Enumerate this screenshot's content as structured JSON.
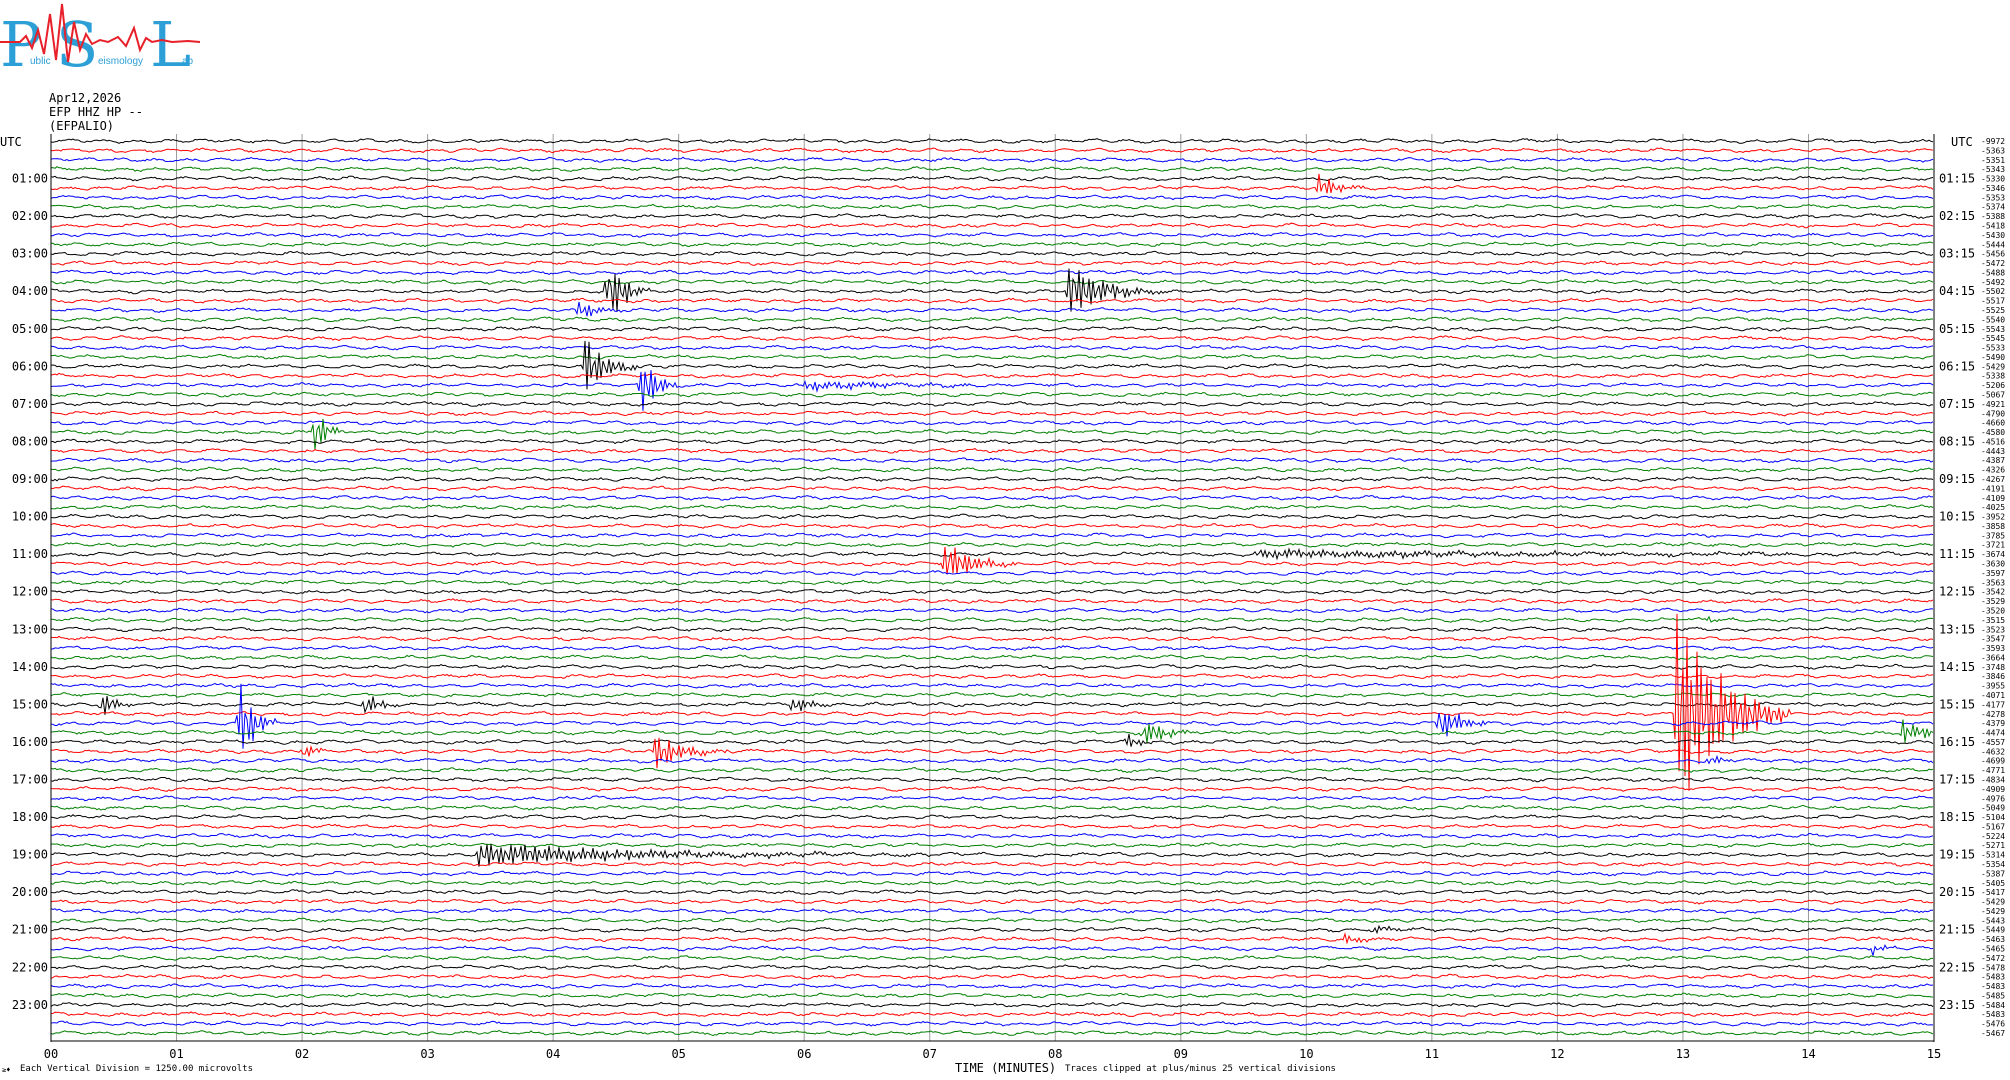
{
  "logo": {
    "letters": [
      "P",
      "S",
      "L"
    ],
    "small_words": [
      "ublic",
      "eismology",
      "ab"
    ],
    "colors": {
      "letters": "#2b9fd6",
      "wave": "#e8202a"
    }
  },
  "header": {
    "date": "Apr12,2026",
    "station": "EFP HHZ HP --",
    "code": "(EFPALIO)"
  },
  "chart_data": {
    "type": "line",
    "title": "",
    "xlabel": "TIME (MINUTES)",
    "x_ticks": [
      "00",
      "01",
      "02",
      "03",
      "04",
      "05",
      "06",
      "07",
      "08",
      "09",
      "10",
      "11",
      "12",
      "13",
      "14",
      "15"
    ],
    "xlim": [
      0,
      15
    ],
    "grid": true,
    "trace_colors": [
      "#000000",
      "#ff0000",
      "#0000ff",
      "#007f00"
    ],
    "utc_label": "UTC",
    "left_hour_labels": [
      "01:00",
      "02:00",
      "03:00",
      "04:00",
      "05:00",
      "06:00",
      "07:00",
      "08:00",
      "09:00",
      "10:00",
      "11:00",
      "12:00",
      "13:00",
      "14:00",
      "15:00",
      "16:00",
      "17:00",
      "18:00",
      "19:00",
      "20:00",
      "21:00",
      "22:00",
      "23:00"
    ],
    "right_hour_labels": [
      "01:15",
      "02:15",
      "03:15",
      "04:15",
      "05:15",
      "06:15",
      "07:15",
      "08:15",
      "09:15",
      "10:15",
      "11:15",
      "12:15",
      "13:15",
      "14:15",
      "15:15",
      "16:15",
      "17:15",
      "18:15",
      "19:15",
      "20:15",
      "21:15",
      "22:15",
      "23:15"
    ],
    "trace_count": 96,
    "offsets": [
      "-9972",
      "-5363",
      "-5351",
      "-5343",
      "-5330",
      "-5346",
      "-5353",
      "-5374",
      "-5388",
      "-5418",
      "-5430",
      "-5444",
      "-5456",
      "-5472",
      "-5488",
      "-5492",
      "-5502",
      "-5517",
      "-5525",
      "-5540",
      "-5543",
      "-5545",
      "-5533",
      "-5490",
      "-5429",
      "-5338",
      "-5206",
      "-5067",
      "-4921",
      "-4790",
      "-4660",
      "-4580",
      "-4516",
      "-4443",
      "-4387",
      "-4326",
      "-4267",
      "-4191",
      "-4109",
      "-4025",
      "-3952",
      "-3858",
      "-3785",
      "-3721",
      "-3674",
      "-3630",
      "-3597",
      "-3563",
      "-3542",
      "-3529",
      "-3520",
      "-3515",
      "-3523",
      "-3547",
      "-3593",
      "-3664",
      "-3748",
      "-3846",
      "-3955",
      "-4071",
      "-4177",
      "-4278",
      "-4379",
      "-4474",
      "-4557",
      "-4632",
      "-4699",
      "-4771",
      "-4834",
      "-4909",
      "-4976",
      "-5049",
      "-5104",
      "-5167",
      "-5224",
      "-5271",
      "-5314",
      "-5354",
      "-5387",
      "-5405",
      "-5417",
      "-5429",
      "-5429",
      "-5443",
      "-5449",
      "-5463",
      "-5465",
      "-5472",
      "-5478",
      "-5483",
      "-5483",
      "-5485",
      "-5484",
      "-5483",
      "-5476",
      "-5467"
    ],
    "events": [
      {
        "trace": 16,
        "x_min": 4.43,
        "amp": 45,
        "dur": 0.12
      },
      {
        "trace": 16,
        "x_min": 8.1,
        "amp": 38,
        "dur": 0.25
      },
      {
        "trace": 18,
        "x_min": 4.2,
        "amp": 14,
        "dur": 0.12
      },
      {
        "trace": 24,
        "x_min": 4.25,
        "amp": 40,
        "dur": 0.15
      },
      {
        "trace": 26,
        "x_min": 4.7,
        "amp": 45,
        "dur": 0.1
      },
      {
        "trace": 26,
        "x_min": 6.0,
        "amp": 6,
        "dur": 0.7
      },
      {
        "trace": 31,
        "x_min": 2.1,
        "amp": 30,
        "dur": 0.08
      },
      {
        "trace": 5,
        "x_min": 10.1,
        "amp": 14,
        "dur": 0.15
      },
      {
        "trace": 45,
        "x_min": 7.12,
        "amp": 28,
        "dur": 0.2
      },
      {
        "trace": 44,
        "x_min": 9.6,
        "amp": 5,
        "dur": 2.3
      },
      {
        "trace": 60,
        "x_min": 0.4,
        "amp": 16,
        "dur": 0.1
      },
      {
        "trace": 61,
        "x_min": 12.95,
        "amp": 140,
        "dur": 0.3
      },
      {
        "trace": 62,
        "x_min": 1.5,
        "amp": 60,
        "dur": 0.1
      },
      {
        "trace": 60,
        "x_min": 2.5,
        "amp": 15,
        "dur": 0.1
      },
      {
        "trace": 60,
        "x_min": 5.9,
        "amp": 15,
        "dur": 0.1
      },
      {
        "trace": 65,
        "x_min": 2.0,
        "amp": 10,
        "dur": 0.1
      },
      {
        "trace": 65,
        "x_min": 4.8,
        "amp": 22,
        "dur": 0.2
      },
      {
        "trace": 63,
        "x_min": 8.7,
        "amp": 18,
        "dur": 0.15
      },
      {
        "trace": 64,
        "x_min": 8.55,
        "amp": 10,
        "dur": 0.1
      },
      {
        "trace": 62,
        "x_min": 11.05,
        "amp": 24,
        "dur": 0.15
      },
      {
        "trace": 63,
        "x_min": 14.75,
        "amp": 14,
        "dur": 0.2
      },
      {
        "trace": 66,
        "x_min": 13.2,
        "amp": 8,
        "dur": 0.1
      },
      {
        "trace": 76,
        "x_min": 3.4,
        "amp": 14,
        "dur": 1.2
      },
      {
        "trace": 86,
        "x_min": 14.5,
        "amp": 8,
        "dur": 0.1
      },
      {
        "trace": 85,
        "x_min": 10.3,
        "amp": 5,
        "dur": 0.15
      },
      {
        "trace": 84,
        "x_min": 10.5,
        "amp": 4,
        "dur": 0.2
      },
      {
        "trace": 51,
        "x_min": 13.2,
        "amp": 4,
        "dur": 0.15
      }
    ]
  },
  "footer": {
    "vertical_division": "Each Vertical Division = 1250.00 microvolts",
    "clip_note": "Traces clipped at plus/minus 25 vertical divisions",
    "corner_mark": "≥♦"
  }
}
